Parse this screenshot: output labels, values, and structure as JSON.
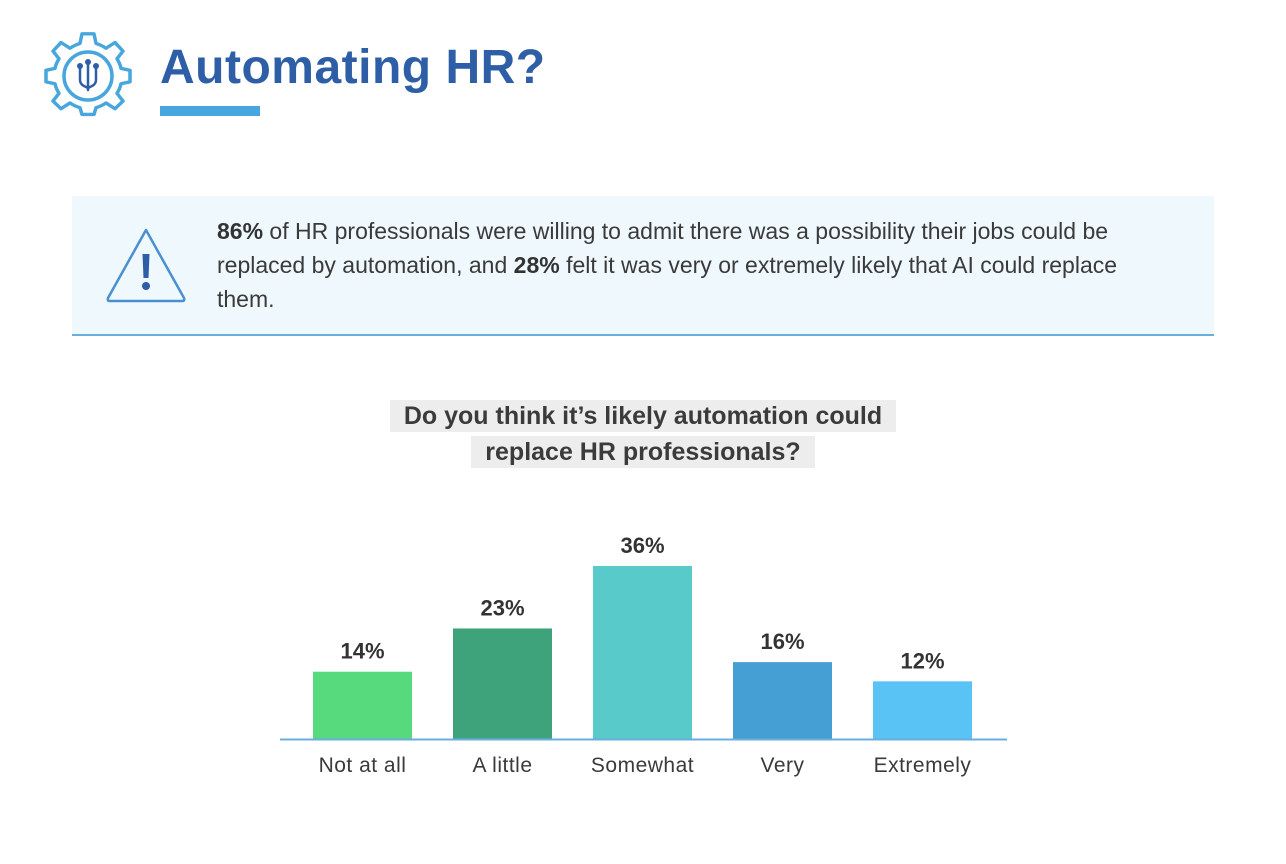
{
  "header": {
    "title": "Automating HR?"
  },
  "callout": {
    "stat1": "86%",
    "text1": " of HR professionals were willing to admit there was a possibility their jobs could be replaced by automation, and ",
    "stat2": "28%",
    "text2": " felt it was very or extremely likely that AI could replace them."
  },
  "chart_data": {
    "type": "bar",
    "title_line1": "Do you think it’s likely automation could",
    "title_line2": "replace HR professionals?",
    "categories": [
      "Not at all",
      "A little",
      "Somewhat",
      "Very",
      "Extremely"
    ],
    "values": [
      14,
      23,
      36,
      16,
      12
    ],
    "value_labels": [
      "14%",
      "23%",
      "36%",
      "16%",
      "12%"
    ],
    "colors": [
      "#57d97d",
      "#3ea37a",
      "#57cac9",
      "#459fd5",
      "#58c3f4"
    ],
    "ylim": [
      0,
      36
    ],
    "grid": false,
    "legend": "none"
  },
  "colors": {
    "title": "#2e5ea6",
    "accent": "#47a6dd",
    "callout_bg": "#eef8fd"
  }
}
